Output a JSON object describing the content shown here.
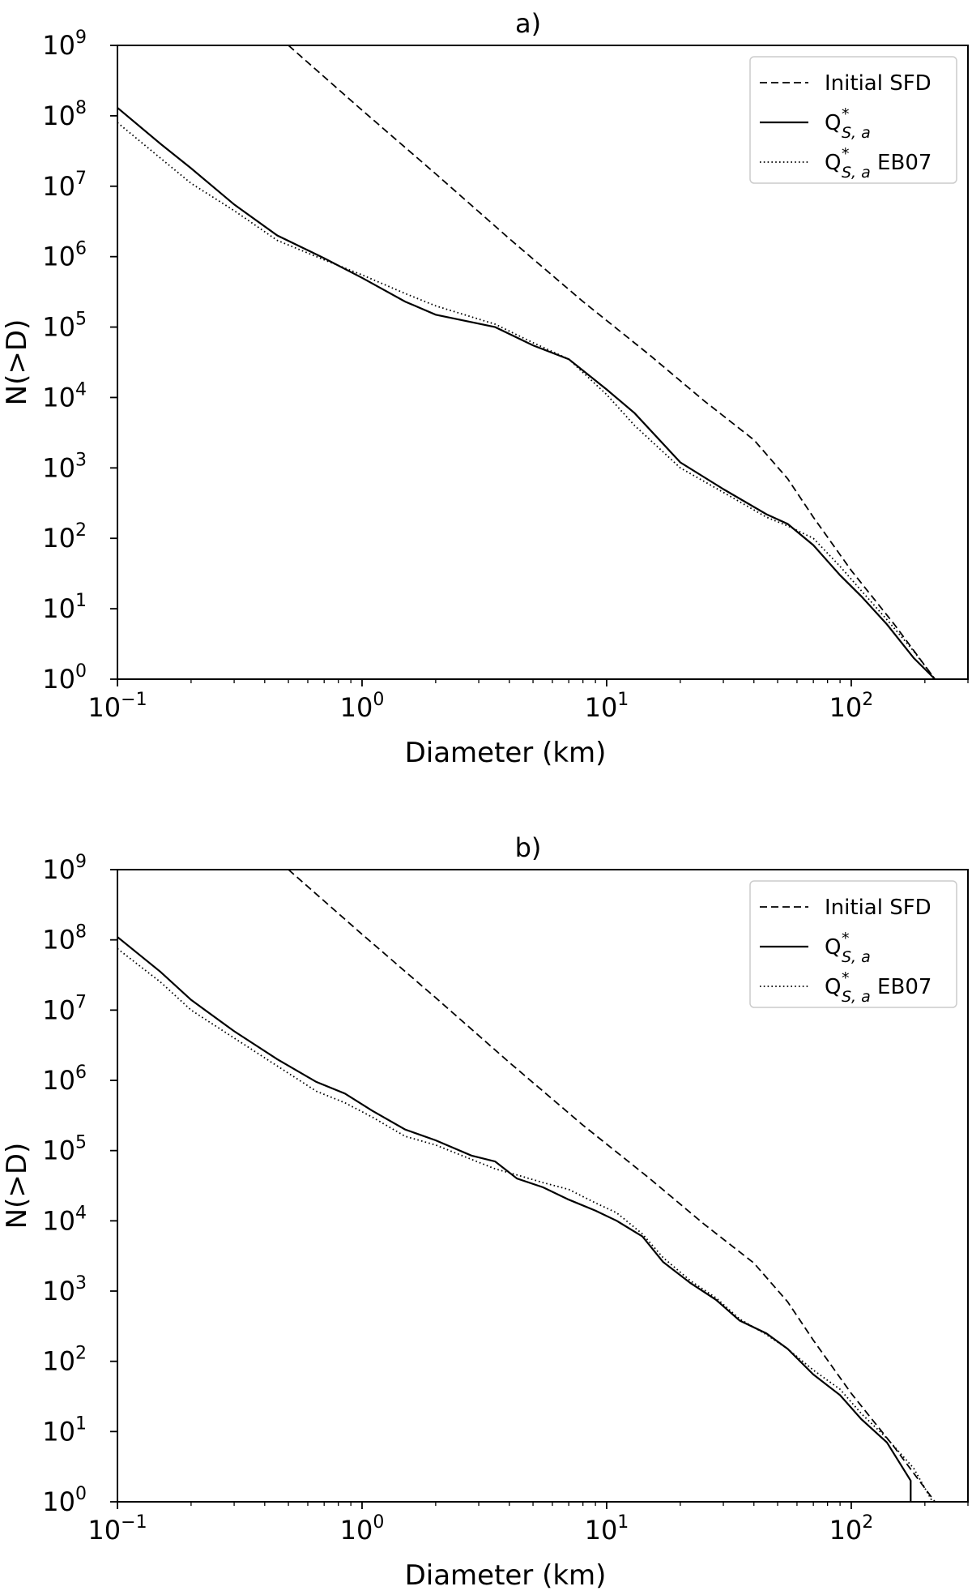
{
  "chart_data": [
    {
      "type": "line",
      "title": "a)",
      "xlabel": "Diameter (km)",
      "ylabel": "N(>D)",
      "xscale": "log",
      "yscale": "log",
      "xlim": [
        0.1,
        300
      ],
      "ylim": [
        1,
        1000000000
      ],
      "x_ticks": [
        {
          "base": "10",
          "exp": "−1"
        },
        {
          "base": "10",
          "exp": "0"
        },
        {
          "base": "10",
          "exp": "1"
        },
        {
          "base": "10",
          "exp": "2"
        }
      ],
      "y_ticks": [
        {
          "base": "10",
          "exp": "0"
        },
        {
          "base": "10",
          "exp": "1"
        },
        {
          "base": "10",
          "exp": "2"
        },
        {
          "base": "10",
          "exp": "3"
        },
        {
          "base": "10",
          "exp": "4"
        },
        {
          "base": "10",
          "exp": "5"
        },
        {
          "base": "10",
          "exp": "6"
        },
        {
          "base": "10",
          "exp": "7"
        },
        {
          "base": "10",
          "exp": "8"
        },
        {
          "base": "10",
          "exp": "9"
        }
      ],
      "legend": {
        "position": "top-right"
      },
      "grid": false,
      "series": [
        {
          "name": "Initial SFD",
          "style": "dashed",
          "color": "#000000",
          "x": [
            0.5,
            1,
            2,
            4,
            8,
            15,
            25,
            40,
            55,
            70,
            100,
            150,
            220
          ],
          "y": [
            1000000000,
            120000000,
            15000000,
            1800000,
            230000,
            40000,
            9000,
            2500,
            700,
            200,
            35,
            6,
            1
          ]
        },
        {
          "name": "Q",
          "name_sub": "S, a",
          "name_sup": "*",
          "style": "solid",
          "color": "#000000",
          "x": [
            0.1,
            0.15,
            0.2,
            0.3,
            0.45,
            0.7,
            1,
            1.5,
            2,
            3.5,
            5,
            7,
            10,
            13,
            20,
            30,
            45,
            55,
            70,
            90,
            110,
            140,
            180,
            220
          ],
          "y": [
            130000000,
            40000000,
            18000000,
            5500000,
            2000000,
            950000,
            500000,
            230000,
            150000,
            100000,
            55000,
            35000,
            13000,
            6000,
            1200,
            500,
            220,
            160,
            80,
            30,
            15,
            6,
            2,
            1
          ]
        },
        {
          "name": "Q",
          "name_sub": "S, a",
          "name_sup": "*",
          "name_suffix": " EB07",
          "style": "dotted",
          "color": "#000000",
          "x": [
            0.1,
            0.15,
            0.2,
            0.3,
            0.45,
            0.7,
            1,
            1.5,
            2,
            3.5,
            5,
            7,
            10,
            13,
            20,
            30,
            45,
            55,
            70,
            90,
            110,
            140,
            180,
            220
          ],
          "y": [
            80000000,
            25000000,
            11000000,
            4500000,
            1700000,
            900000,
            550000,
            300000,
            200000,
            110000,
            60000,
            35000,
            11000,
            4000,
            1000,
            450,
            200,
            150,
            100,
            40,
            18,
            7,
            2.5,
            1
          ]
        }
      ]
    },
    {
      "type": "line",
      "title": "b)",
      "xlabel": "Diameter (km)",
      "ylabel": "N(>D)",
      "xscale": "log",
      "yscale": "log",
      "xlim": [
        0.1,
        300
      ],
      "ylim": [
        1,
        1000000000
      ],
      "x_ticks": [
        {
          "base": "10",
          "exp": "−1"
        },
        {
          "base": "10",
          "exp": "0"
        },
        {
          "base": "10",
          "exp": "1"
        },
        {
          "base": "10",
          "exp": "2"
        }
      ],
      "y_ticks": [
        {
          "base": "10",
          "exp": "0"
        },
        {
          "base": "10",
          "exp": "1"
        },
        {
          "base": "10",
          "exp": "2"
        },
        {
          "base": "10",
          "exp": "3"
        },
        {
          "base": "10",
          "exp": "4"
        },
        {
          "base": "10",
          "exp": "5"
        },
        {
          "base": "10",
          "exp": "6"
        },
        {
          "base": "10",
          "exp": "7"
        },
        {
          "base": "10",
          "exp": "8"
        },
        {
          "base": "10",
          "exp": "9"
        }
      ],
      "legend": {
        "position": "top-right"
      },
      "grid": false,
      "series": [
        {
          "name": "Initial SFD",
          "style": "dashed",
          "color": "#000000",
          "x": [
            0.5,
            1,
            2,
            4,
            8,
            15,
            25,
            40,
            55,
            70,
            100,
            150,
            220
          ],
          "y": [
            1000000000,
            120000000,
            15000000,
            1800000,
            230000,
            40000,
            9000,
            2500,
            700,
            200,
            35,
            6,
            1
          ]
        },
        {
          "name": "Q",
          "name_sub": "S, a",
          "name_sup": "*",
          "style": "solid",
          "color": "#000000",
          "x": [
            0.1,
            0.15,
            0.2,
            0.3,
            0.45,
            0.65,
            0.85,
            1.1,
            1.5,
            2,
            2.8,
            3.5,
            4.3,
            5.5,
            7,
            9,
            11,
            14,
            17,
            22,
            28,
            35,
            45,
            55,
            70,
            90,
            110,
            140,
            175,
            175
          ],
          "y": [
            110000000,
            35000000,
            14000000,
            5000000,
            2000000,
            950000,
            650000,
            370000,
            200000,
            140000,
            85000,
            70000,
            40000,
            30000,
            20000,
            14000,
            10000,
            6000,
            2600,
            1300,
            750,
            380,
            250,
            150,
            65,
            33,
            15,
            7,
            2,
            1
          ]
        },
        {
          "name": "Q",
          "name_sub": "S, a",
          "name_sup": "*",
          "name_suffix": " EB07",
          "style": "dotted",
          "color": "#000000",
          "x": [
            0.1,
            0.15,
            0.2,
            0.3,
            0.45,
            0.65,
            0.85,
            1.1,
            1.5,
            2,
            2.8,
            3.5,
            4.3,
            5.5,
            7,
            9,
            11,
            14,
            17,
            22,
            28,
            35,
            45,
            55,
            70,
            90,
            110,
            140,
            180,
            215
          ],
          "y": [
            75000000,
            25000000,
            10000000,
            4000000,
            1600000,
            700000,
            480000,
            300000,
            160000,
            120000,
            75000,
            55000,
            45000,
            35000,
            28000,
            18000,
            13000,
            6500,
            3000,
            1400,
            800,
            400,
            240,
            150,
            75,
            40,
            18,
            8,
            3,
            1
          ]
        }
      ]
    }
  ]
}
